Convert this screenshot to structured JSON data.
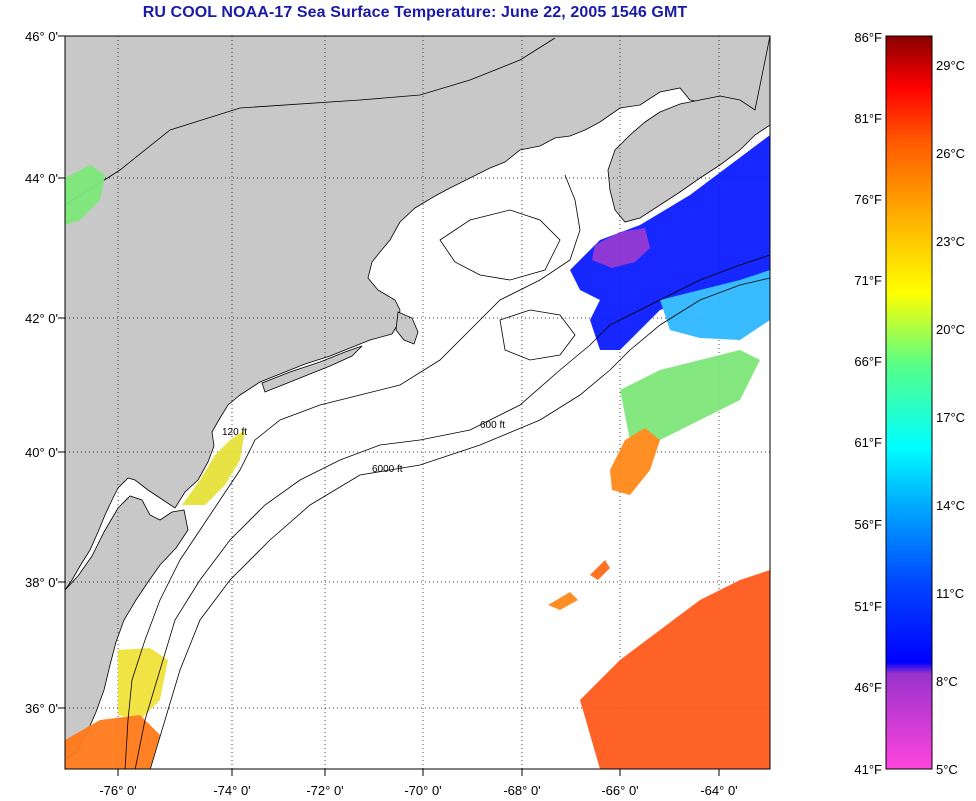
{
  "title": "RU COOL  NOAA-17  Sea Surface Temperature:  June 22, 2005 1546 GMT",
  "latitude_labels": [
    "46° 0'",
    "44° 0'",
    "42° 0'",
    "40° 0'",
    "38° 0'",
    "36° 0'"
  ],
  "longitude_labels": [
    "-76° 0'",
    "-74° 0'",
    "-72° 0'",
    "-70° 0'",
    "-68° 0'",
    "-66° 0'",
    "-64° 0'"
  ],
  "isobath_labels": [
    "120 ft",
    "600 ft",
    "6000 ft"
  ],
  "colorbar": {
    "fahrenheit_labels": [
      "86°F",
      "81°F",
      "76°F",
      "71°F",
      "66°F",
      "61°F",
      "56°F",
      "51°F",
      "46°F",
      "41°F"
    ],
    "celsius_labels": [
      "29°C",
      "26°C",
      "23°C",
      "20°C",
      "17°C",
      "14°C",
      "11°C",
      "8°C",
      "5°C"
    ]
  },
  "colors": {
    "title": "#1a1aa8",
    "land": "#c8c8c8",
    "ocean": "#ffffff",
    "colorbar_stops": [
      "#ff44cc",
      "#8833cc",
      "#0000ff",
      "#00aaff",
      "#00ffff",
      "#55ff88",
      "#ffff00",
      "#ffaa00",
      "#ff5500",
      "#ff0000",
      "#880000"
    ]
  }
}
